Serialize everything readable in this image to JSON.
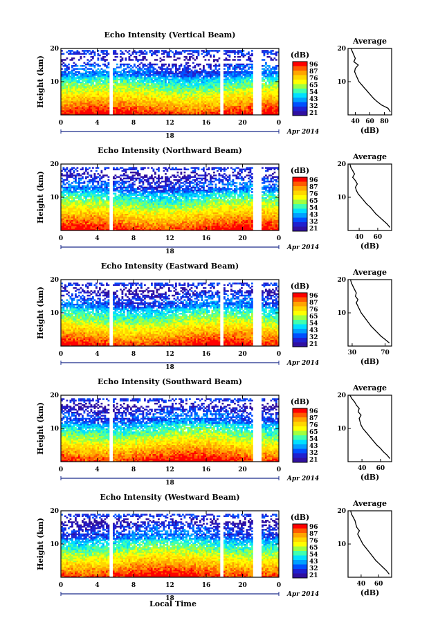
{
  "figure": {
    "xlabel": "Local Time"
  },
  "colorbar": {
    "unit_label": "(dB)",
    "tick_labels": [
      "96",
      "87",
      "76",
      "65",
      "54",
      "43",
      "32",
      "21"
    ],
    "colors": [
      "#ff0000",
      "#ff5a00",
      "#ffa500",
      "#ffd700",
      "#ffff00",
      "#a0ff40",
      "#40ffb0",
      "#00e0ff",
      "#00a0ff",
      "#0050ff",
      "#2020d0",
      "#3010a0"
    ]
  },
  "chart_data": [
    {
      "type": "heatmap",
      "name": "vertical",
      "title": "Echo Intensity (Vertical Beam)",
      "ylabel": "Height (km)",
      "ylim": [
        0,
        20
      ],
      "xlim": [
        0,
        24
      ],
      "x_ticks": [
        "0",
        "4",
        "8",
        "12",
        "16",
        "20",
        "0"
      ],
      "y_ticks": [
        "10",
        "20"
      ],
      "date_label": "18",
      "month_label": "Apr 2014",
      "data_gaps_hours": [
        [
          5.4,
          5.8
        ],
        [
          17.6,
          17.9
        ],
        [
          21.1,
          22.1
        ]
      ],
      "top_height_km": 19.5,
      "colorbar_ticks": [
        "96",
        "87",
        "76",
        "65",
        "54",
        "43",
        "32",
        "21"
      ],
      "profile": {
        "title": "Average",
        "xlabel": "(dB)",
        "x_ticks": [
          "40",
          "60",
          "80"
        ],
        "xlim": [
          30,
          90
        ],
        "heights": [
          1,
          2,
          3,
          4,
          5,
          6,
          7,
          8,
          9,
          10,
          11,
          12,
          13,
          14,
          15,
          16,
          17,
          18,
          19,
          20
        ],
        "values": [
          88,
          85,
          76,
          70,
          65,
          61,
          57,
          53,
          49,
          45,
          43,
          41,
          39,
          40,
          44,
          38,
          40,
          38,
          36,
          34
        ]
      }
    },
    {
      "type": "heatmap",
      "name": "northward",
      "title": "Echo Intensity (Northward Beam)",
      "ylabel": "Height (km)",
      "ylim": [
        0,
        20
      ],
      "xlim": [
        0,
        24
      ],
      "x_ticks": [
        "0",
        "4",
        "8",
        "12",
        "16",
        "20",
        "0"
      ],
      "y_ticks": [
        "10",
        "20"
      ],
      "date_label": "18",
      "month_label": "Apr 2014",
      "data_gaps_hours": [
        [
          5.4,
          5.8
        ],
        [
          21.1,
          22.1
        ]
      ],
      "top_height_km": 19.0,
      "colorbar_ticks": [
        "96",
        "87",
        "76",
        "65",
        "54",
        "43",
        "32",
        "21"
      ],
      "profile": {
        "title": "Average",
        "xlabel": "(dB)",
        "x_ticks": [
          "40",
          "60"
        ],
        "xlim": [
          28,
          75
        ],
        "heights": [
          1,
          2,
          3,
          4,
          5,
          6,
          7,
          8,
          9,
          10,
          11,
          12,
          13,
          14,
          15,
          16,
          17,
          18,
          19,
          20
        ],
        "values": [
          73,
          70,
          66,
          62,
          58,
          55,
          52,
          48,
          45,
          42,
          39,
          37,
          36,
          38,
          36,
          33,
          35,
          33,
          31,
          30
        ]
      }
    },
    {
      "type": "heatmap",
      "name": "eastward",
      "title": "Echo Intensity (Eastward Beam)",
      "ylabel": "Height (km)",
      "ylim": [
        0,
        20
      ],
      "xlim": [
        0,
        24
      ],
      "x_ticks": [
        "0",
        "4",
        "8",
        "12",
        "16",
        "20",
        "0"
      ],
      "y_ticks": [
        "10",
        "20"
      ],
      "date_label": "18",
      "month_label": "Apr 2014",
      "data_gaps_hours": [
        [
          5.4,
          5.8
        ],
        [
          17.6,
          17.9
        ],
        [
          21.1,
          22.1
        ]
      ],
      "top_height_km": 19.0,
      "colorbar_ticks": [
        "96",
        "87",
        "76",
        "65",
        "54",
        "43",
        "32",
        "21"
      ],
      "profile": {
        "title": "Average",
        "xlabel": "(dB)",
        "x_ticks": [
          "30",
          "70"
        ],
        "xlim": [
          25,
          78
        ],
        "heights": [
          1,
          2,
          3,
          4,
          5,
          6,
          7,
          8,
          9,
          10,
          11,
          12,
          13,
          14,
          15,
          16,
          17,
          18,
          19,
          20
        ],
        "values": [
          75,
          70,
          65,
          61,
          57,
          53,
          50,
          47,
          44,
          41,
          39,
          37,
          35,
          37,
          34,
          35,
          33,
          31,
          29,
          28
        ]
      }
    },
    {
      "type": "heatmap",
      "name": "southward",
      "title": "Echo Intensity (Southward Beam)",
      "ylabel": "Height (km)",
      "ylim": [
        0,
        20
      ],
      "xlim": [
        0,
        24
      ],
      "x_ticks": [
        "0",
        "4",
        "8",
        "12",
        "16",
        "20",
        "0"
      ],
      "y_ticks": [
        "10",
        "20"
      ],
      "date_label": "18",
      "month_label": "Apr 2014",
      "data_gaps_hours": [
        [
          5.4,
          5.8
        ],
        [
          21.1,
          22.1
        ]
      ],
      "top_height_km": 19.0,
      "colorbar_ticks": [
        "96",
        "87",
        "76",
        "65",
        "54",
        "43",
        "32",
        "21"
      ],
      "profile": {
        "title": "Average",
        "xlabel": "(dB)",
        "x_ticks": [
          "40",
          "60"
        ],
        "xlim": [
          25,
          72
        ],
        "heights": [
          1,
          2,
          3,
          4,
          5,
          6,
          7,
          8,
          9,
          10,
          11,
          12,
          13,
          14,
          15,
          16,
          17,
          18,
          19,
          20
        ],
        "values": [
          70,
          67,
          63,
          60,
          56,
          53,
          50,
          47,
          44,
          41,
          39,
          38,
          37,
          39,
          36,
          37,
          34,
          32,
          29,
          27
        ]
      }
    },
    {
      "type": "heatmap",
      "name": "westward",
      "title": "Echo Intensity (Westward Beam)",
      "ylabel": "Height (km)",
      "ylim": [
        0,
        20
      ],
      "xlim": [
        0,
        24
      ],
      "x_ticks": [
        "0",
        "4",
        "8",
        "12",
        "16",
        "20",
        "0"
      ],
      "y_ticks": [
        "10",
        "20"
      ],
      "date_label": "18",
      "month_label": "Apr 2014",
      "data_gaps_hours": [
        [
          5.4,
          5.8
        ],
        [
          17.6,
          17.9
        ],
        [
          21.1,
          22.1
        ]
      ],
      "top_height_km": 19.0,
      "colorbar_ticks": [
        "96",
        "87",
        "76",
        "65",
        "54",
        "43",
        "32",
        "21"
      ],
      "profile": {
        "title": "Average",
        "xlabel": "(dB)",
        "x_ticks": [
          "40",
          "60"
        ],
        "xlim": [
          25,
          75
        ],
        "heights": [
          1,
          2,
          3,
          4,
          5,
          6,
          7,
          8,
          9,
          10,
          11,
          12,
          13,
          14,
          15,
          16,
          17,
          18,
          19,
          20
        ],
        "values": [
          72,
          69,
          65,
          61,
          57,
          54,
          51,
          48,
          45,
          42,
          40,
          38,
          36,
          38,
          35,
          34,
          33,
          31,
          29,
          28
        ]
      }
    }
  ]
}
